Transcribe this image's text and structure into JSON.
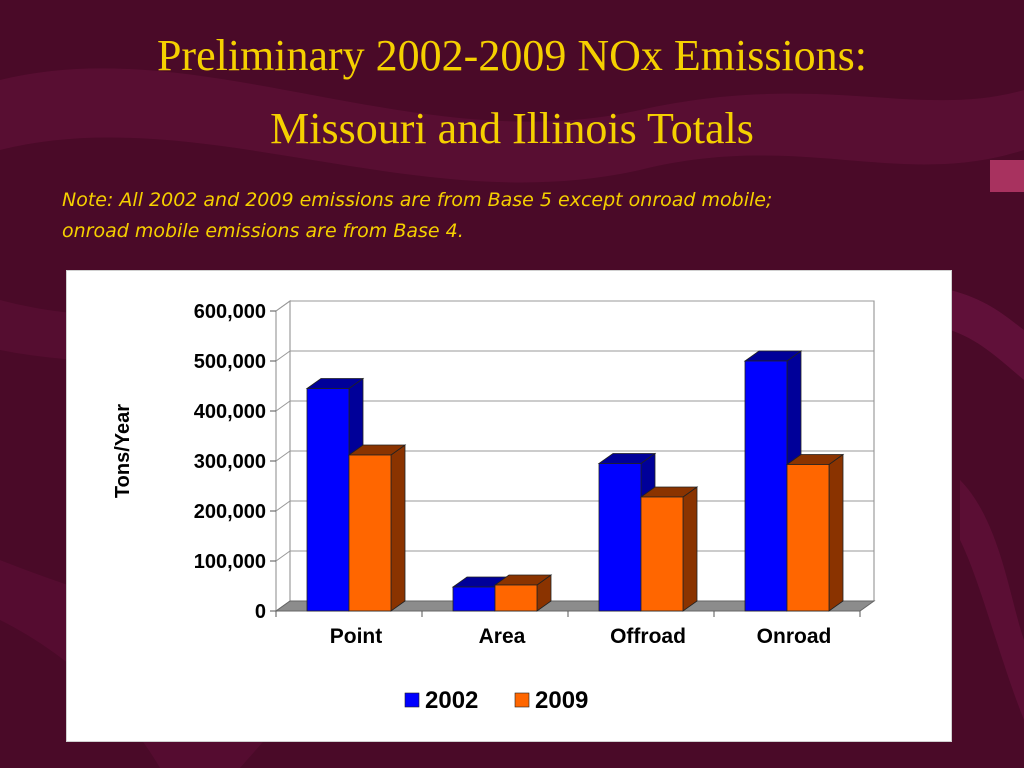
{
  "slide": {
    "title_line1": "Preliminary 2002-2009 NOx Emissions:",
    "title_line2": "Missouri and Illinois Totals",
    "note_line1": "Note:  All 2002 and 2009 emissions are from Base 5 except onroad mobile;",
    "note_line2": "onroad mobile emissions are from Base 4.",
    "background_color": "#4a0a28",
    "title_color": "#f5d000"
  },
  "chart_data": {
    "type": "bar",
    "style": "3d-clustered",
    "categories": [
      "Point",
      "Area",
      "Offroad",
      "Onroad"
    ],
    "series": [
      {
        "name": "2002",
        "values": [
          445000,
          48000,
          295000,
          500000
        ],
        "color": "#0000ff",
        "shade": "#000099"
      },
      {
        "name": "2009",
        "values": [
          312000,
          52000,
          228000,
          293000
        ],
        "color": "#ff6600",
        "shade": "#8a3300"
      }
    ],
    "ylabel": "Tons/Year",
    "xlabel": "",
    "ylim": [
      0,
      600000
    ],
    "yticks": [
      "0",
      "100,000",
      "200,000",
      "300,000",
      "400,000",
      "500,000",
      "600,000"
    ],
    "grid": true,
    "legend_position": "bottom"
  }
}
